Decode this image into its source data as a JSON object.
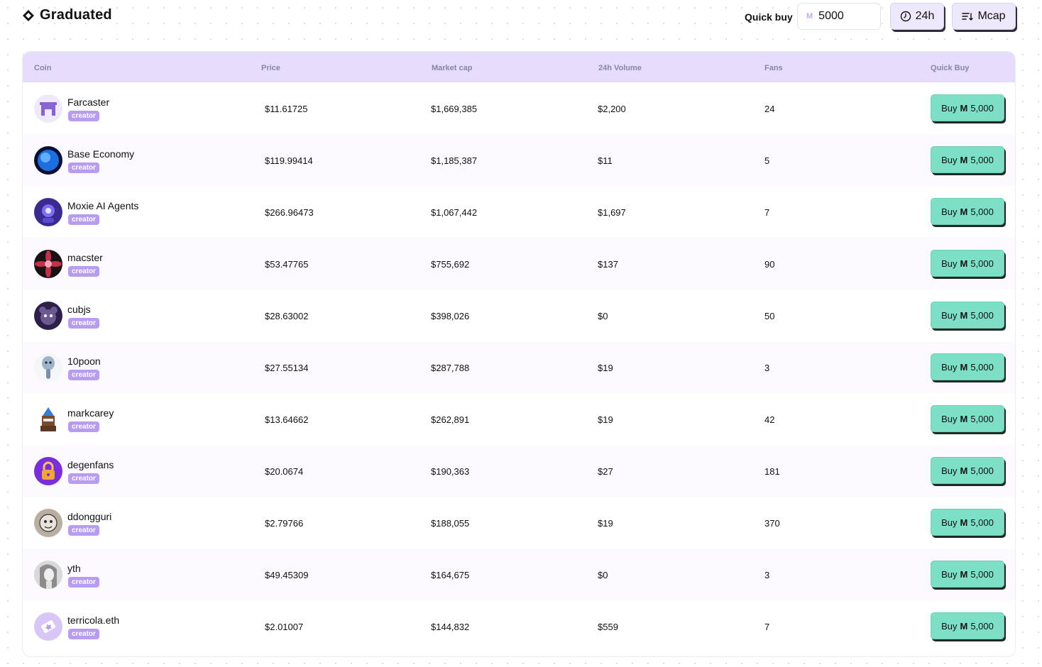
{
  "header": {
    "title": "Graduated",
    "quick_buy_label": "Quick buy",
    "quick_buy_value": "5000",
    "quick_buy_currency_icon": "M",
    "time_filter_label": "24h",
    "sort_label": "Mcap"
  },
  "table": {
    "columns": {
      "coin": "Coin",
      "price": "Price",
      "market_cap": "Market cap",
      "volume": "24h Volume",
      "fans": "Fans",
      "quick_buy": "Quick Buy"
    },
    "badge_label": "creator",
    "buy_label": "Buy",
    "buy_currency_glyph": "M",
    "buy_amount": "5,000",
    "rows": [
      {
        "name": "Farcaster",
        "price": "$11.61725",
        "market_cap": "$1,669,385",
        "volume": "$2,200",
        "fans": "24",
        "avatar_icon": "farcaster-arch-icon",
        "avatar_color": "#8a63d2"
      },
      {
        "name": "Base Economy",
        "price": "$119.99414",
        "market_cap": "$1,185,387",
        "volume": "$11",
        "fans": "5",
        "avatar_icon": "blue-orb-icon",
        "avatar_color": "#1d6fe0"
      },
      {
        "name": "Moxie AI Agents",
        "price": "$266.96473",
        "market_cap": "$1,067,442",
        "volume": "$1,697",
        "fans": "7",
        "avatar_icon": "robot-icon",
        "avatar_color": "#3b2a8f"
      },
      {
        "name": "macster",
        "price": "$53.47765",
        "market_cap": "$755,692",
        "volume": "$137",
        "fans": "90",
        "avatar_icon": "flower-icon",
        "avatar_color": "#c2304a"
      },
      {
        "name": "cubjs",
        "price": "$28.63002",
        "market_cap": "$398,026",
        "volume": "$0",
        "fans": "50",
        "avatar_icon": "bear-icon",
        "avatar_color": "#2d1f4a"
      },
      {
        "name": "10poon",
        "price": "$27.55134",
        "market_cap": "$287,788",
        "volume": "$19",
        "fans": "3",
        "avatar_icon": "spoon-character-icon",
        "avatar_color": "#9fb3c8"
      },
      {
        "name": "markcarey",
        "price": "$13.64662",
        "market_cap": "$262,891",
        "volume": "$19",
        "fans": "42",
        "avatar_icon": "pixel-wizard-icon",
        "avatar_color": "#7a4a2e"
      },
      {
        "name": "degenfans",
        "price": "$20.0674",
        "market_cap": "$190,363",
        "volume": "$27",
        "fans": "181",
        "avatar_icon": "padlock-icon",
        "avatar_color": "#7a2fd6"
      },
      {
        "name": "ddongguri",
        "price": "$2.79766",
        "market_cap": "$188,055",
        "volume": "$19",
        "fans": "370",
        "avatar_icon": "cartoon-face-icon",
        "avatar_color": "#b8aea2"
      },
      {
        "name": "yth",
        "price": "$49.45309",
        "market_cap": "$164,675",
        "volume": "$0",
        "fans": "3",
        "avatar_icon": "portrait-icon",
        "avatar_color": "#8c8c8c"
      },
      {
        "name": "terricola.eth",
        "price": "$2.01007",
        "market_cap": "$144,832",
        "volume": "$559",
        "fans": "7",
        "avatar_icon": "ticket-icon",
        "avatar_color": "#d7c6f6"
      }
    ]
  }
}
